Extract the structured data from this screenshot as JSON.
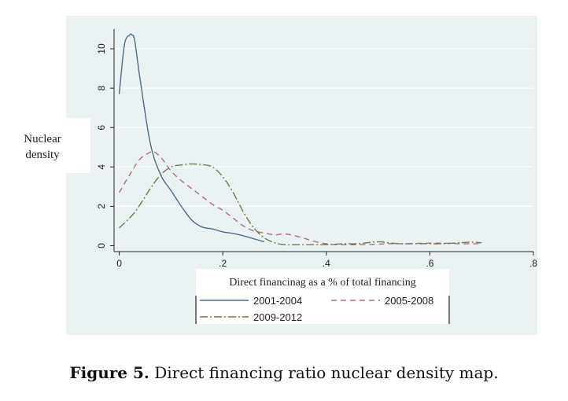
{
  "caption": {
    "label": "Figure 5.",
    "text": " Direct financing ratio nuclear density map."
  },
  "chart_data": {
    "type": "line",
    "title": "",
    "ylabel": "Nuclear density",
    "xlabel": "Direct financinag as a % of total financing",
    "xlim": [
      -0.01,
      0.8
    ],
    "ylim": [
      -0.3,
      11.0
    ],
    "x_ticks": [
      0,
      0.2,
      0.4,
      0.6,
      0.8
    ],
    "x_tick_labels": [
      "0",
      ".2",
      ".4",
      ".6",
      ".8"
    ],
    "y_ticks": [
      0,
      2,
      4,
      6,
      8,
      10
    ],
    "y_tick_labels": [
      "0",
      "2",
      "4",
      "6",
      "8",
      "10"
    ],
    "grid": "horizontal",
    "legend_placement": "bottom",
    "plot_background": "#eaf2f3",
    "series": [
      {
        "name": "2001-2004",
        "color": "#4a6c8c",
        "dash": "solid",
        "x": [
          0.0,
          0.01,
          0.02,
          0.025,
          0.03,
          0.04,
          0.06,
          0.08,
          0.1,
          0.12,
          0.14,
          0.16,
          0.18,
          0.2,
          0.22,
          0.24,
          0.26,
          0.28
        ],
        "y": [
          7.7,
          10.2,
          10.7,
          10.7,
          10.4,
          8.5,
          5.2,
          3.6,
          2.8,
          2.0,
          1.3,
          0.95,
          0.85,
          0.7,
          0.62,
          0.5,
          0.35,
          0.2
        ]
      },
      {
        "name": "2005-2008",
        "color": "#b86d7d",
        "dash": "7,5",
        "x": [
          0.0,
          0.02,
          0.04,
          0.06,
          0.065,
          0.08,
          0.1,
          0.12,
          0.14,
          0.16,
          0.18,
          0.2,
          0.22,
          0.24,
          0.26,
          0.28,
          0.3,
          0.32,
          0.34,
          0.36,
          0.38,
          0.4,
          0.42,
          0.44,
          0.46,
          0.48,
          0.5,
          0.52,
          0.54,
          0.56,
          0.58,
          0.6,
          0.62,
          0.64,
          0.66,
          0.68,
          0.7
        ],
        "y": [
          2.7,
          3.6,
          4.4,
          4.75,
          4.8,
          4.5,
          3.8,
          3.3,
          2.9,
          2.5,
          2.1,
          1.8,
          1.4,
          1.0,
          0.75,
          0.65,
          0.55,
          0.6,
          0.5,
          0.35,
          0.2,
          0.1,
          0.05,
          0.05,
          0.05,
          0.06,
          0.08,
          0.1,
          0.1,
          0.1,
          0.12,
          0.13,
          0.13,
          0.12,
          0.1,
          0.1,
          0.1
        ]
      },
      {
        "name": "2009-2012",
        "color": "#6a7d45",
        "dash": "10,3,2,3",
        "x": [
          0.0,
          0.03,
          0.06,
          0.08,
          0.1,
          0.12,
          0.14,
          0.16,
          0.18,
          0.2,
          0.22,
          0.24,
          0.26,
          0.28,
          0.3,
          0.32,
          0.34,
          0.36,
          0.38,
          0.4,
          0.42,
          0.44,
          0.46,
          0.48,
          0.5,
          0.52,
          0.54,
          0.56,
          0.58,
          0.6,
          0.62,
          0.64,
          0.66,
          0.68,
          0.7
        ],
        "y": [
          0.9,
          1.7,
          2.9,
          3.6,
          4.0,
          4.1,
          4.15,
          4.12,
          4.0,
          3.5,
          2.7,
          1.7,
          0.9,
          0.4,
          0.15,
          0.05,
          0.05,
          0.05,
          0.05,
          0.05,
          0.08,
          0.1,
          0.1,
          0.15,
          0.2,
          0.15,
          0.1,
          0.1,
          0.1,
          0.1,
          0.1,
          0.12,
          0.15,
          0.18,
          0.15
        ]
      }
    ]
  }
}
